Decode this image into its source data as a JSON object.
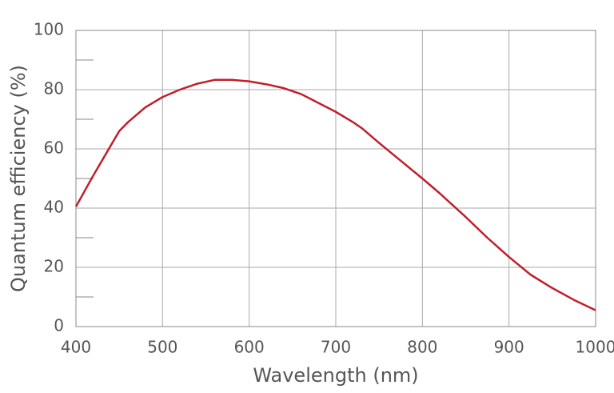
{
  "chart_data": {
    "type": "line",
    "x_label": "Wavelength (nm)",
    "y_label": "Quantum efficiency (%)",
    "x": [
      400,
      420,
      440,
      450,
      460,
      480,
      500,
      520,
      540,
      560,
      580,
      600,
      620,
      640,
      660,
      680,
      700,
      720,
      730,
      750,
      775,
      800,
      820,
      850,
      875,
      900,
      925,
      950,
      975,
      1000
    ],
    "series": [
      {
        "color": "#c01f2b",
        "values": [
          40.5,
          51,
          61,
          66,
          69,
          74,
          77.5,
          80,
          82,
          83.3,
          83.3,
          82.8,
          81.8,
          80.5,
          78.5,
          75.5,
          72.5,
          69,
          67,
          62,
          56,
          50,
          45,
          37,
          30,
          23.5,
          17.5,
          13,
          9,
          5.5
        ]
      }
    ],
    "xlim": [
      400,
      1000
    ],
    "xticks": [
      400,
      500,
      600,
      700,
      800,
      900,
      1000
    ],
    "ylim": [
      0,
      100
    ],
    "yticks": [
      0,
      20,
      40,
      60,
      80,
      100
    ],
    "yminorticks": [
      10,
      30,
      50,
      70,
      90
    ],
    "grid": true
  }
}
